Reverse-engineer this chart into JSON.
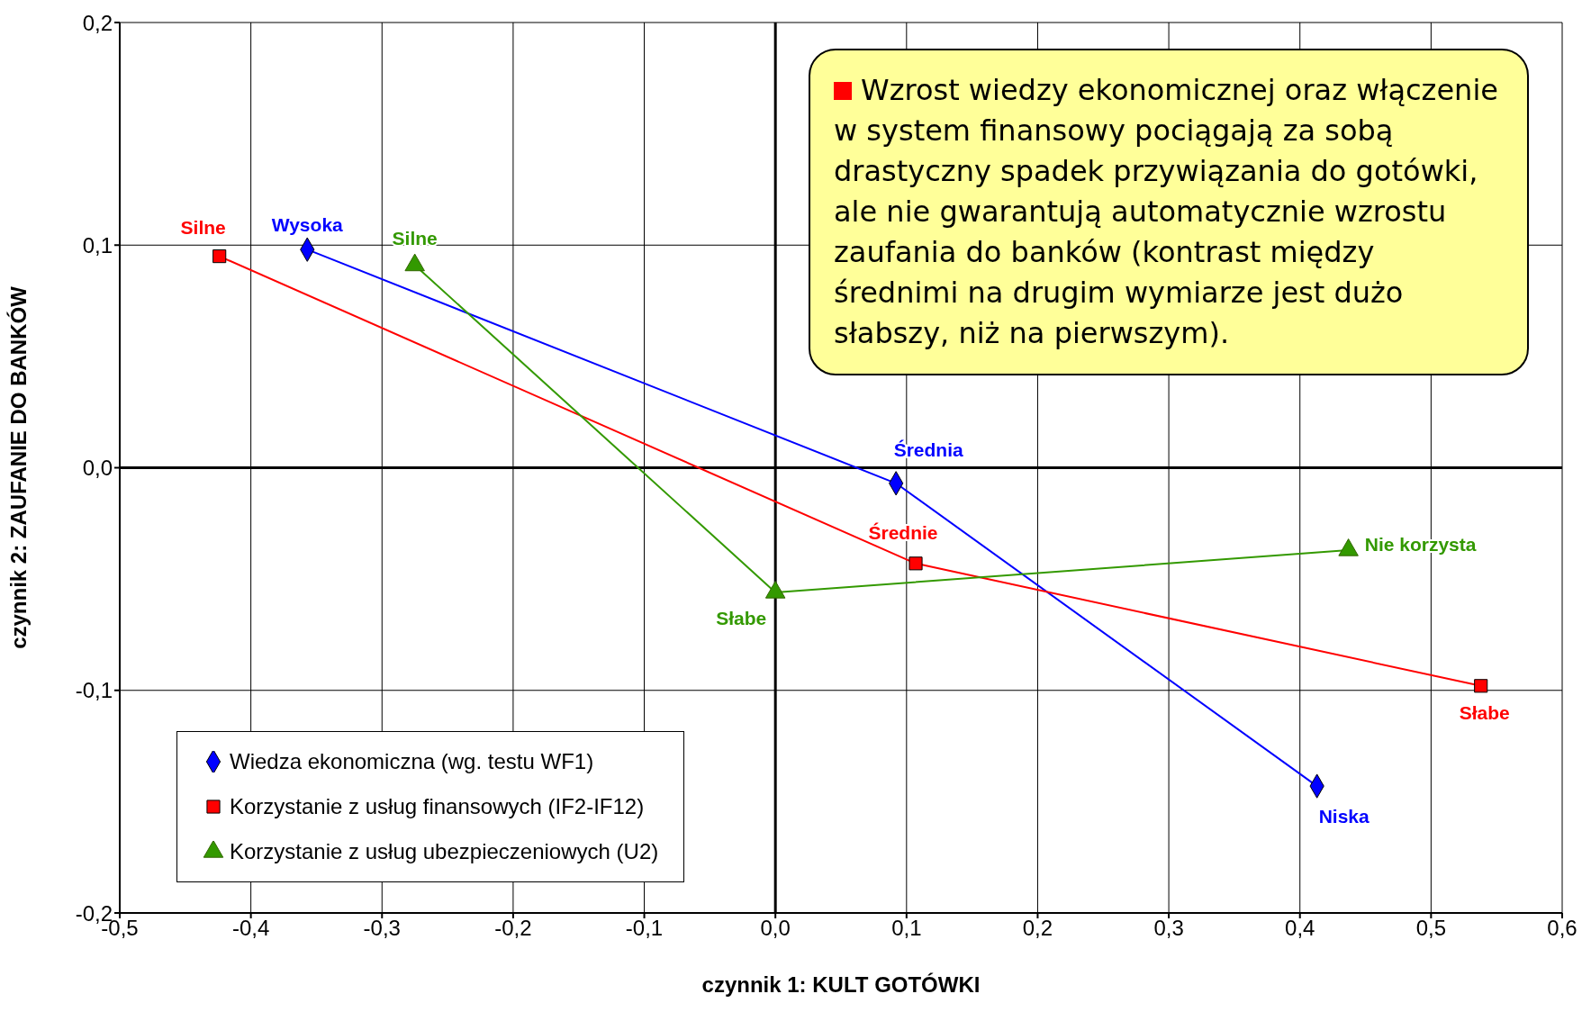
{
  "chart_data": {
    "type": "scatter",
    "xlabel": "czynnik 1: KULT GOTÓWKI",
    "ylabel": "czynnik 2: ZAUFANIE DO BANKÓW",
    "xlim": [
      -0.5,
      0.6
    ],
    "ylim": [
      -0.2,
      0.2
    ],
    "xticks": [
      {
        "value": -0.5,
        "label": "-0,5"
      },
      {
        "value": -0.4,
        "label": "-0,4"
      },
      {
        "value": -0.3,
        "label": "-0,3"
      },
      {
        "value": -0.2,
        "label": "-0,2"
      },
      {
        "value": -0.1,
        "label": "-0,1"
      },
      {
        "value": 0,
        "label": "0,0"
      },
      {
        "value": 0.1,
        "label": "0,1"
      },
      {
        "value": 0.2,
        "label": "0,2"
      },
      {
        "value": 0.3,
        "label": "0,3"
      },
      {
        "value": 0.4,
        "label": "0,4"
      },
      {
        "value": 0.5,
        "label": "0,5"
      },
      {
        "value": 0.6,
        "label": "0,6"
      }
    ],
    "yticks": [
      {
        "value": -0.2,
        "label": "-0,2"
      },
      {
        "value": -0.1,
        "label": "-0,1"
      },
      {
        "value": 0,
        "label": "0,0"
      },
      {
        "value": 0.1,
        "label": "0,1"
      },
      {
        "value": 0.2,
        "label": "0,2"
      }
    ],
    "grid": true,
    "legend": "bottom left",
    "line_style": "solid",
    "series": [
      {
        "name": "Wiedza ekonomiczna (wg. testu WF1)",
        "color": "#0000ff",
        "marker": "diamond",
        "x": [
          0.413,
          0.092,
          -0.357
        ],
        "values": [
          -0.143,
          -0.007,
          0.098
        ],
        "value_labels": [
          "Niska",
          "Średnia",
          "Wysoka"
        ]
      },
      {
        "name": "Korzystanie z usług finansowych (IF2-IF12)",
        "color": "#ff0000",
        "marker": "square",
        "x": [
          0.538,
          0.107,
          -0.424
        ],
        "values": [
          -0.098,
          -0.043,
          0.095
        ],
        "value_labels": [
          "Słabe",
          "Średnie",
          "Silne"
        ]
      },
      {
        "name": "Korzystanie z usług ubezpieczeniowych (U2)",
        "color": "#339900",
        "marker": "triangle",
        "x": [
          0.437,
          0.0,
          -0.275
        ],
        "values": [
          -0.037,
          -0.056,
          0.091
        ],
        "value_labels": [
          "Nie korzysta",
          "Słabe",
          "Silne"
        ]
      }
    ],
    "annotations": [
      "Wzrost wiedzy ekonomicznej oraz włączenie w system finansowy pociągają za sobą drastyczny spadek przywiązania do gotówki, ale nie gwarantują automatycznie wzrostu zaufania do banków (kontrast między średnimi na drugim wymiarze jest dużo słabszy, niż na pierwszym)."
    ]
  }
}
